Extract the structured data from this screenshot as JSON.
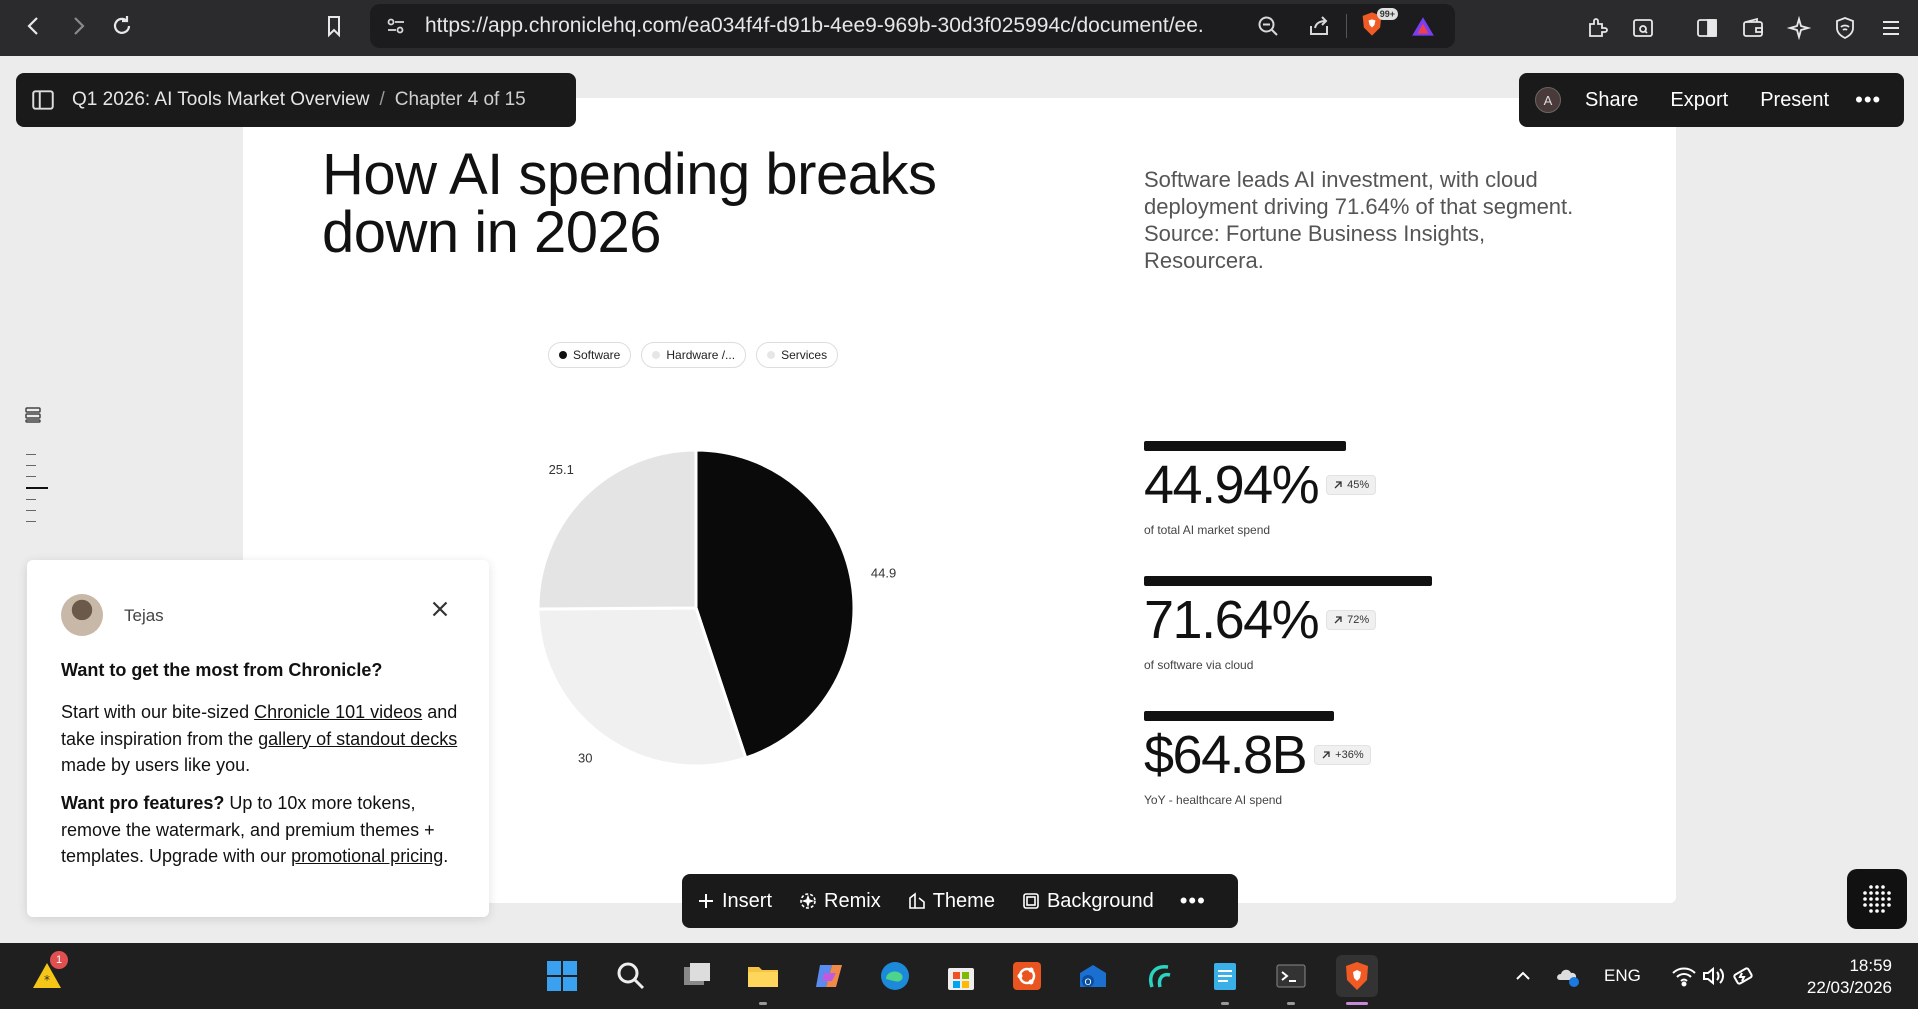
{
  "browser": {
    "url": "https://app.chroniclehq.com/ea034f4f-d91b-4ee9-969b-30d3f025994c/document/ee...",
    "badge_count": "99+"
  },
  "doc_bar": {
    "title": "Q1 2026: AI Tools Market Overview",
    "separator": "/",
    "chapter": "Chapter 4 of 15"
  },
  "action_bar": {
    "avatar_initial": "A",
    "share": "Share",
    "export": "Export",
    "present": "Present",
    "more": "•••"
  },
  "slide": {
    "title": "How AI spending breaks down in 2026",
    "subtitle": "Software leads AI investment, with cloud deployment driving 71.64% of that segment. Source: Fortune Business Insights, Resourcera."
  },
  "chart_data": {
    "type": "pie",
    "categories": [
      "Software",
      "Hardware /...",
      "Services"
    ],
    "values": [
      44.9,
      30,
      25.1
    ],
    "colors": [
      "#0a0a0a",
      "#f0f0f0",
      "#e4e4e4"
    ],
    "legend_placement": "top"
  },
  "stats": [
    {
      "value": "44.94%",
      "badge": "45%",
      "caption": "of total AI market spend",
      "fill": 0.4494
    },
    {
      "value": "71.64%",
      "badge": "72%",
      "caption": "of software via cloud",
      "fill": 0.7164
    },
    {
      "value": "$64.8B",
      "badge": "+36%",
      "caption": "YoY - healthcare AI spend",
      "fill": 0.36
    }
  ],
  "tip": {
    "name": "Tejas",
    "heading": "Want to get the most from Chronicle?",
    "p1_a": "Start with our bite-sized ",
    "p1_link1": "Chronicle 101 videos",
    "p1_b": " and take inspiration from the ",
    "p1_link2": "gallery of standout decks",
    "p1_c": " made by users like you.",
    "p2_bold": "Want pro features?",
    "p2_a": " Up to 10x more tokens, remove the watermark, and premium themes + templates. Upgrade with our ",
    "p2_link": "promotional pricing",
    "p2_b": "."
  },
  "toolbar": {
    "insert": "Insert",
    "remix": "Remix",
    "theme": "Theme",
    "background": "Background",
    "more": "•••"
  },
  "taskbar": {
    "language": "ENG",
    "time": "18:59",
    "date": "22/03/2026",
    "notification_count": "1"
  }
}
